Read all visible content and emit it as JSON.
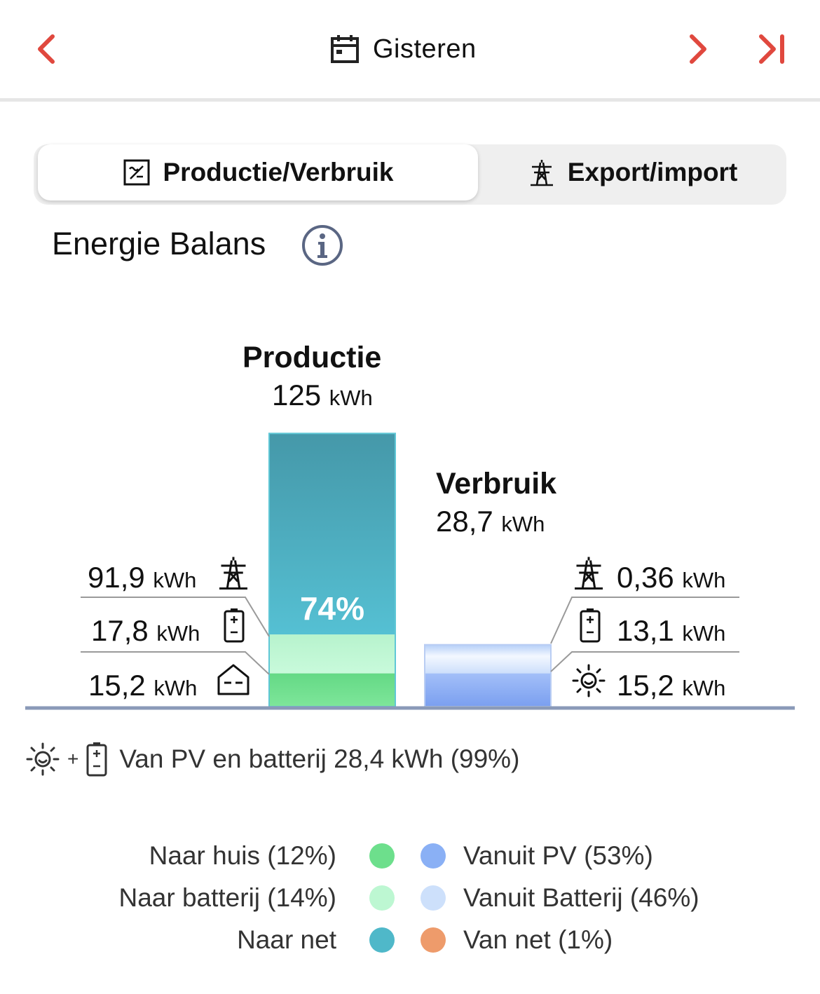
{
  "nav": {
    "date_label": "Gisteren",
    "icons": [
      "chevron-left-icon",
      "calendar-icon",
      "chevron-right-icon",
      "skip-to-end-icon"
    ],
    "accent_color": "#e0483e"
  },
  "tabs": [
    {
      "label": "Productie/Verbruik",
      "icon": "solar-inverter-icon",
      "active": true
    },
    {
      "label": "Export/import",
      "icon": "power-pylon-icon",
      "active": false
    }
  ],
  "section": {
    "title": "Energie Balans",
    "info_icon": "info-icon"
  },
  "chart_data": {
    "type": "bar",
    "title": "",
    "bars": [
      {
        "name": "Productie",
        "total_value": "125",
        "total_unit": "kWh",
        "total": 125,
        "percent_label": "74%",
        "segments": [
          {
            "name": "Naar net",
            "value": 91.9,
            "color": "#4fb8c9"
          },
          {
            "name": "Naar batterij",
            "value": 17.8,
            "color": "#bdf7d2"
          },
          {
            "name": "Naar huis",
            "value": 15.2,
            "color": "#6ddf8c"
          }
        ]
      },
      {
        "name": "Verbruik",
        "total_value": "28,7",
        "total_unit": "kWh",
        "total": 28.7,
        "segments": [
          {
            "name": "Van net",
            "value": 0.36,
            "color": "#ee9b6b"
          },
          {
            "name": "Vanuit Batterij",
            "value": 13.1,
            "color": "#cde0fb"
          },
          {
            "name": "Vanuit PV",
            "value": 15.2,
            "color": "#8ab0f5"
          }
        ]
      }
    ],
    "left_labels": [
      {
        "value": "91,9",
        "unit": "kWh",
        "icon": "power-pylon-icon"
      },
      {
        "value": "17,8",
        "unit": "kWh",
        "icon": "battery-icon"
      },
      {
        "value": "15,2",
        "unit": "kWh",
        "icon": "house-icon"
      }
    ],
    "right_labels": [
      {
        "value": "0,36",
        "unit": "kWh",
        "icon": "power-pylon-icon"
      },
      {
        "value": "13,1",
        "unit": "kWh",
        "icon": "battery-icon"
      },
      {
        "value": "15,2",
        "unit": "kWh",
        "icon": "sun-icon"
      }
    ]
  },
  "self_consumption": {
    "plus": "+",
    "text": "Van PV en batterij 28,4 kWh (99%)"
  },
  "legend": {
    "left": [
      {
        "label": "Naar huis (12%)",
        "color": "#6ddf8c"
      },
      {
        "label": "Naar batterij (14%)",
        "color": "#bdf7d2"
      },
      {
        "label": "Naar net",
        "color": "#4fb8c9"
      }
    ],
    "right": [
      {
        "label": "Vanuit PV (53%)",
        "color": "#8ab0f5"
      },
      {
        "label": "Vanuit Batterij (46%)",
        "color": "#cde0fb"
      },
      {
        "label": "Van net (1%)",
        "color": "#ee9b6b"
      }
    ]
  }
}
